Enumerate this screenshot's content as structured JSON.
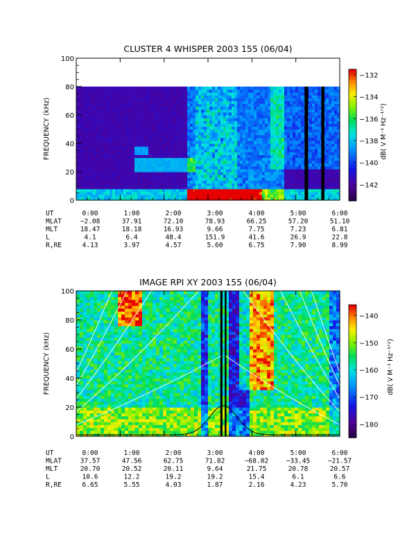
{
  "chart_data": [
    {
      "type": "heatmap",
      "title": "CLUSTER 4 WHISPER 2003 155 (06/04)",
      "ylabel": "FREQUENCY (kHz)",
      "ylim": [
        0,
        100
      ],
      "yticks": [
        "0",
        "20",
        "40",
        "60",
        "80",
        "100"
      ],
      "x_tick_labels": [
        "0:00",
        "1:00",
        "2:00",
        "3:00",
        "4:00",
        "5:00",
        "6:00"
      ],
      "colorbar": {
        "label": "dB( V M⁻¹ Hz⁻¹ᐟ²)",
        "range": [
          -143.5,
          -131.5
        ],
        "ticks": [
          "-132",
          "-134",
          "-136",
          "-138",
          "-140",
          "-142"
        ]
      },
      "data_top_khz": 80,
      "gaps_ut_hours": [
        [
          5.2,
          5.28
        ],
        [
          5.58,
          5.65
        ]
      ],
      "ephemeris": {
        "labels": [
          "UT",
          "MLAT",
          "MLT",
          "L",
          "R,RE"
        ],
        "rows": [
          [
            "0:00",
            "1:00",
            "2:00",
            "3:00",
            "4:00",
            "5:00",
            "6:00"
          ],
          [
            "-2.08",
            "37.91",
            "72.10",
            "78.93",
            "66.25",
            "57.20",
            "51.10"
          ],
          [
            "18.47",
            "18.18",
            "16.93",
            "9.66",
            "7.75",
            "7.23",
            "6.81"
          ],
          [
            "4.1",
            "6.4",
            "48.4",
            "151.9",
            "41.6",
            "26.9",
            "22.8"
          ],
          [
            "4.13",
            "3.97",
            "4.57",
            "5.60",
            "6.75",
            "7.90",
            "8.99"
          ]
        ]
      }
    },
    {
      "type": "heatmap",
      "title": "IMAGE RPI XY 2003 155 (06/04)",
      "ylabel": "FREQUENCY (kHz)",
      "ylim": [
        0,
        100
      ],
      "yticks": [
        "0",
        "20",
        "40",
        "60",
        "80",
        "100"
      ],
      "x_tick_labels": [
        "0:00",
        "1:00",
        "2:00",
        "3:00",
        "4:00",
        "5:00",
        "6:00"
      ],
      "colorbar": {
        "label": "dB( V M⁻¹ Hz⁻¹ᐟ²)",
        "range": [
          -185,
          -136
        ],
        "ticks": [
          "-140",
          "-150",
          "-160",
          "-170",
          "-180"
        ]
      },
      "gaps_ut_hours": [
        [
          3.28,
          3.33
        ],
        [
          3.38,
          3.42
        ]
      ],
      "ephemeris": {
        "labels": [
          "UT",
          "MLAT",
          "MLT",
          "L",
          "R,RE"
        ],
        "rows": [
          [
            "0:00",
            "1:00",
            "2:00",
            "3:00",
            "4:00",
            "5:00",
            "6:00"
          ],
          [
            "37.57",
            "47.56",
            "62.75",
            "71.82",
            "-68.02",
            "-33.45",
            "-21.57"
          ],
          [
            "20.70",
            "20.52",
            "20.11",
            "9.64",
            "21.75",
            "20.78",
            "20.57"
          ],
          [
            "10.6",
            "12.2",
            "19.2",
            "19.2",
            "15.4",
            "6.1",
            "6.6"
          ],
          [
            "6.65",
            "5.55",
            "4.03",
            "1.87",
            "2.16",
            "4.23",
            "5.70"
          ]
        ]
      }
    }
  ]
}
